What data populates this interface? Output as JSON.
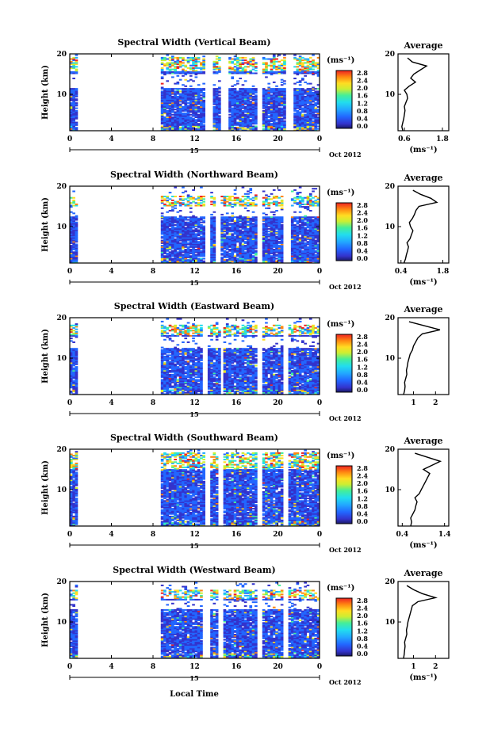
{
  "figure": {
    "xlabel": "Local Time",
    "date_label": "Oct 2012",
    "day_label": "15",
    "colorbar_unit": "(ms⁻¹)",
    "avg_title": "Average",
    "avg_xlabel": "(ms⁻¹)",
    "ylabel": "Height (km)"
  },
  "colorbar": {
    "ticks": [
      "0.0",
      "0.4",
      "0.8",
      "1.2",
      "1.6",
      "2.0",
      "2.4",
      "2.8"
    ],
    "stops": [
      "#1a1a66",
      "#3333cc",
      "#2266ff",
      "#22aaff",
      "#22ddee",
      "#44ee99",
      "#ccee33",
      "#ffdd22",
      "#ff8811",
      "#ee2222"
    ]
  },
  "chart_data": [
    {
      "type": "heatmap",
      "title": "Spectral Width (Vertical Beam)",
      "xlabel": "Local Time",
      "ylabel": "Height (km)",
      "xlim": [
        0,
        24
      ],
      "ylim": [
        1,
        20
      ],
      "xticks": [
        "0",
        "4",
        "8",
        "12",
        "16",
        "20",
        "0"
      ],
      "yticks": [
        "10",
        "20"
      ],
      "value_unit": "ms⁻¹",
      "data_gaps_hours": [
        [
          0.6,
          8.6
        ],
        [
          12.9,
          13.7
        ],
        [
          14.5,
          15.1
        ],
        [
          18.0,
          18.5
        ],
        [
          20.6,
          21.3
        ]
      ],
      "upper_layer_km": [
        15.5,
        19.0
      ],
      "clear_band_km": [
        11.5,
        15.0
      ],
      "profile": {
        "title": "Average",
        "xlabel": "(ms⁻¹)",
        "xlim": [
          0.4,
          2.0
        ],
        "xticks": [
          "0.6",
          "1.8"
        ],
        "yticks": [
          "10",
          "20"
        ],
        "height_km": [
          1,
          2,
          3,
          4,
          5,
          6,
          7,
          8,
          9,
          10,
          11,
          12,
          13,
          14,
          15,
          16,
          17,
          18,
          19
        ],
        "values": [
          0.55,
          0.52,
          0.55,
          0.58,
          0.6,
          0.62,
          0.6,
          0.65,
          0.7,
          0.68,
          0.6,
          0.75,
          0.95,
          0.8,
          0.9,
          1.1,
          1.3,
          0.85,
          0.7
        ]
      }
    },
    {
      "type": "heatmap",
      "title": "Spectral Width (Northward Beam)",
      "xlabel": "Local Time",
      "ylabel": "Height (km)",
      "xlim": [
        0,
        24
      ],
      "ylim": [
        1,
        20
      ],
      "xticks": [
        "0",
        "4",
        "8",
        "12",
        "16",
        "20",
        "0"
      ],
      "yticks": [
        "10",
        "20"
      ],
      "value_unit": "ms⁻¹",
      "data_gaps_hours": [
        [
          0.6,
          8.6
        ],
        [
          12.8,
          13.3
        ],
        [
          14.0,
          14.5
        ],
        [
          17.8,
          18.3
        ],
        [
          20.4,
          21.1
        ]
      ],
      "upper_layer_km": [
        15.0,
        17.5
      ],
      "clear_band_km": [
        12.5,
        14.8
      ],
      "profile": {
        "title": "Average",
        "xlabel": "(ms⁻¹)",
        "xlim": [
          0.3,
          2.0
        ],
        "xticks": [
          "0.4",
          "1.8"
        ],
        "yticks": [
          "10",
          "20"
        ],
        "height_km": [
          1,
          2,
          3,
          4,
          5,
          6,
          7,
          8,
          9,
          10,
          11,
          12,
          13,
          14,
          15,
          16,
          17,
          18,
          19
        ],
        "values": [
          0.5,
          0.55,
          0.58,
          0.62,
          0.65,
          0.6,
          0.7,
          0.75,
          0.8,
          0.72,
          0.68,
          0.78,
          0.85,
          0.9,
          1.0,
          1.6,
          1.4,
          1.05,
          0.8
        ]
      }
    },
    {
      "type": "heatmap",
      "title": "Spectral Width (Eastward Beam)",
      "xlabel": "Local Time",
      "ylabel": "Height (km)",
      "xlim": [
        0,
        24
      ],
      "ylim": [
        1,
        20
      ],
      "xticks": [
        "0",
        "4",
        "8",
        "12",
        "16",
        "20",
        "0"
      ],
      "yticks": [
        "10",
        "20"
      ],
      "value_unit": "ms⁻¹",
      "data_gaps_hours": [
        [
          0.6,
          8.6
        ],
        [
          12.6,
          13.2
        ],
        [
          14.3,
          14.6
        ],
        [
          17.9,
          18.4
        ],
        [
          20.3,
          20.9
        ]
      ],
      "upper_layer_km": [
        15.5,
        18.0
      ],
      "clear_band_km": [
        12.5,
        15.2
      ],
      "profile": {
        "title": "Average",
        "xlabel": "",
        "xlim": [
          0.3,
          2.6
        ],
        "xticks": [
          "1",
          "2"
        ],
        "yticks": [
          "10",
          "20"
        ],
        "height_km": [
          1,
          2,
          3,
          4,
          5,
          6,
          7,
          8,
          9,
          10,
          11,
          12,
          13,
          14,
          15,
          16,
          17,
          18,
          19
        ],
        "values": [
          0.55,
          0.6,
          0.62,
          0.6,
          0.65,
          0.7,
          0.68,
          0.72,
          0.75,
          0.8,
          0.85,
          0.95,
          1.0,
          1.1,
          1.2,
          1.4,
          2.2,
          1.5,
          0.8
        ]
      }
    },
    {
      "type": "heatmap",
      "title": "Spectral Width (Southward Beam)",
      "xlabel": "Local Time",
      "ylabel": "Height (km)",
      "xlim": [
        0,
        24
      ],
      "ylim": [
        1,
        20
      ],
      "xticks": [
        "0",
        "4",
        "8",
        "12",
        "16",
        "20",
        "0"
      ],
      "yticks": [
        "10",
        "20"
      ],
      "value_unit": "ms⁻¹",
      "data_gaps_hours": [
        [
          0.6,
          8.6
        ],
        [
          12.8,
          13.4
        ],
        [
          14.2,
          14.7
        ],
        [
          17.8,
          18.3
        ],
        [
          20.5,
          21.0
        ]
      ],
      "upper_layer_km": [
        15.0,
        19.0
      ],
      "clear_band_km": [
        0,
        0
      ],
      "profile": {
        "title": "Average",
        "xlabel": "(ms⁻¹)",
        "xlim": [
          0.3,
          1.5
        ],
        "xticks": [
          "0.4",
          "1.4"
        ],
        "yticks": [
          "10",
          "20"
        ],
        "height_km": [
          1,
          2,
          3,
          4,
          5,
          6,
          7,
          8,
          9,
          10,
          11,
          12,
          13,
          14,
          15,
          16,
          17,
          18,
          19
        ],
        "values": [
          0.6,
          0.62,
          0.6,
          0.65,
          0.7,
          0.72,
          0.75,
          0.7,
          0.8,
          0.85,
          0.9,
          0.95,
          1.0,
          1.05,
          0.9,
          1.1,
          1.3,
          1.0,
          0.7
        ]
      }
    },
    {
      "type": "heatmap",
      "title": "Spectral Width (Westward Beam)",
      "xlabel": "Local Time",
      "ylabel": "Height (km)",
      "xlim": [
        0,
        24
      ],
      "ylim": [
        1,
        20
      ],
      "xticks": [
        "0",
        "4",
        "8",
        "12",
        "16",
        "20",
        "0"
      ],
      "yticks": [
        "10",
        "20"
      ],
      "value_unit": "ms⁻¹",
      "data_gaps_hours": [
        [
          0.6,
          8.6
        ],
        [
          12.6,
          13.3
        ],
        [
          14.2,
          14.7
        ],
        [
          17.9,
          18.4
        ],
        [
          20.4,
          20.9
        ]
      ],
      "upper_layer_km": [
        15.5,
        17.8
      ],
      "clear_band_km": [
        13.0,
        15.2
      ],
      "profile": {
        "title": "Average",
        "xlabel": "(ms⁻¹)",
        "xlim": [
          0.3,
          2.6
        ],
        "xticks": [
          "1",
          "2"
        ],
        "yticks": [
          "10",
          "20"
        ],
        "height_km": [
          1,
          2,
          3,
          4,
          5,
          6,
          7,
          8,
          9,
          10,
          11,
          12,
          13,
          14,
          15,
          16,
          17,
          18,
          19
        ],
        "values": [
          0.55,
          0.58,
          0.6,
          0.62,
          0.6,
          0.65,
          0.7,
          0.68,
          0.72,
          0.75,
          0.8,
          0.85,
          0.9,
          0.95,
          1.2,
          2.0,
          1.4,
          1.0,
          0.7
        ]
      }
    }
  ]
}
